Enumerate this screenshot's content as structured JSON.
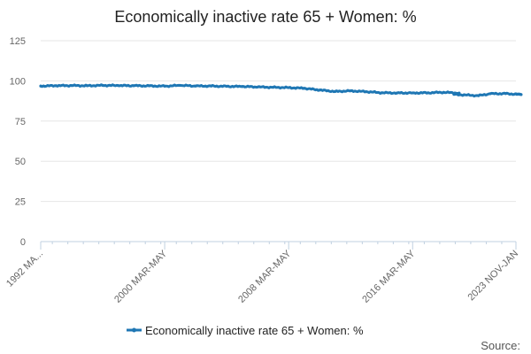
{
  "chart_data": {
    "type": "line",
    "title": "Economically inactive rate 65 + Women: %",
    "xlabel": "",
    "ylabel": "",
    "ylim": [
      0,
      125
    ],
    "yticks": [
      0,
      25,
      50,
      75,
      100,
      125
    ],
    "grid": true,
    "legend_position": "bottom",
    "x_tick_labels": [
      "1992 MA...",
      "2000 MAR-MAY",
      "2008 MAR-MAY",
      "2016 MAR-MAY",
      "2023 NOV-JAN"
    ],
    "x_tick_positions": [
      "1992 MAR-MAY",
      "2000 MAR-MAY",
      "2008 MAR-MAY",
      "2016 MAR-MAY",
      "2023 NOV-JAN"
    ],
    "x_start": "1992 MAR-MAY",
    "x_end": "2023 NOV-JAN",
    "series": [
      {
        "name": "Economically inactive rate 65 + Women: %",
        "color": "#1f77b4",
        "x": [
          "1992 MAR-MAY",
          "1993 MAR-MAY",
          "1994 MAR-MAY",
          "1995 MAR-MAY",
          "1996 MAR-MAY",
          "1997 MAR-MAY",
          "1998 MAR-MAY",
          "1999 MAR-MAY",
          "2000 MAR-MAY",
          "2001 MAR-MAY",
          "2002 MAR-MAY",
          "2003 MAR-MAY",
          "2004 MAR-MAY",
          "2005 MAR-MAY",
          "2006 MAR-MAY",
          "2007 MAR-MAY",
          "2008 MAR-MAY",
          "2009 MAR-MAY",
          "2010 MAR-MAY",
          "2011 MAR-MAY",
          "2012 MAR-MAY",
          "2013 MAR-MAY",
          "2014 MAR-MAY",
          "2015 MAR-MAY",
          "2016 MAR-MAY",
          "2017 MAR-MAY",
          "2018 MAR-MAY",
          "2019 MAR-MAY",
          "2019 NOV-JAN",
          "2020 JUN-AUG",
          "2021 MAR-MAY",
          "2022 MAR-MAY",
          "2023 MAR-MAY",
          "2023 NOV-JAN"
        ],
        "values": [
          96.8,
          97.0,
          97.1,
          97.0,
          97.2,
          97.1,
          97.0,
          96.9,
          96.7,
          97.2,
          96.8,
          96.8,
          96.6,
          96.5,
          96.2,
          96.0,
          95.8,
          95.4,
          94.3,
          93.4,
          93.8,
          93.3,
          92.6,
          92.5,
          92.5,
          92.6,
          92.9,
          92.4,
          91.6,
          90.8,
          92.0,
          92.1,
          91.5,
          91.9
        ]
      }
    ]
  },
  "legend": {
    "label": "Economically inactive rate 65 + Women: %",
    "color": "#1f77b4"
  },
  "source_label": "Source:"
}
